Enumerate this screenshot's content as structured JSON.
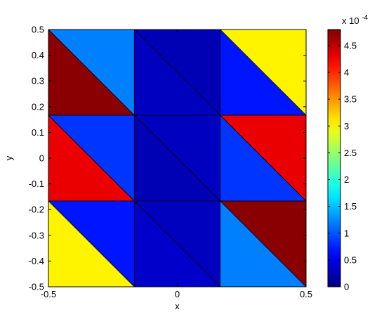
{
  "chart_data": {
    "type": "heatmap",
    "subtype": "triangular-mesh",
    "colormap": "jet",
    "xlabel": "x",
    "ylabel": "y",
    "xlim": [
      -0.5,
      0.5
    ],
    "ylim": [
      -0.5,
      0.5
    ],
    "xticks": [
      -0.5,
      0,
      0.5
    ],
    "xtick_labels": [
      "-0.5",
      "0",
      "0.5"
    ],
    "yticks": [
      -0.5,
      -0.4,
      -0.3,
      -0.2,
      -0.1,
      0,
      0.1,
      0.2,
      0.3,
      0.4,
      0.5
    ],
    "ytick_labels": [
      "-0.5",
      "-0.4",
      "-0.3",
      "-0.2",
      "-0.1",
      "0",
      "0.1",
      "0.2",
      "0.3",
      "0.4",
      "0.5"
    ],
    "grid": false,
    "colorbar": {
      "clim": [
        0,
        4.8
      ],
      "exponent_label": "x 10",
      "exponent_power": "-4",
      "ticks": [
        0,
        0.5,
        1,
        1.5,
        2,
        2.5,
        3,
        3.5,
        4,
        4.5
      ],
      "tick_labels": [
        "0",
        "0.5",
        "1",
        "1.5",
        "2",
        "2.5",
        "3",
        "3.5",
        "4",
        "4.5"
      ]
    },
    "mesh": {
      "nodes_x": [
        -0.5,
        -0.1667,
        0.1667,
        0.5
      ],
      "nodes_y": [
        -0.5,
        -0.1667,
        0.1667,
        0.5
      ],
      "triangles": [
        {
          "vertices": [
            [
              -0.5,
              0.5
            ],
            [
              -0.1667,
              0.5
            ],
            [
              -0.1667,
              0.1667
            ]
          ],
          "value": 1.2
        },
        {
          "vertices": [
            [
              -0.5,
              0.5
            ],
            [
              -0.5,
              0.1667
            ],
            [
              -0.1667,
              0.1667
            ]
          ],
          "value": 4.75
        },
        {
          "vertices": [
            [
              -0.1667,
              0.5
            ],
            [
              0.1667,
              0.5
            ],
            [
              0.1667,
              0.1667
            ]
          ],
          "value": 0.25
        },
        {
          "vertices": [
            [
              -0.1667,
              0.5
            ],
            [
              -0.1667,
              0.1667
            ],
            [
              0.1667,
              0.1667
            ]
          ],
          "value": 0.3
        },
        {
          "vertices": [
            [
              0.1667,
              0.5
            ],
            [
              0.5,
              0.5
            ],
            [
              0.5,
              0.1667
            ]
          ],
          "value": 3.05
        },
        {
          "vertices": [
            [
              0.1667,
              0.5
            ],
            [
              0.1667,
              0.1667
            ],
            [
              0.5,
              0.1667
            ]
          ],
          "value": 0.7
        },
        {
          "vertices": [
            [
              -0.5,
              0.1667
            ],
            [
              -0.1667,
              0.1667
            ],
            [
              -0.1667,
              -0.1667
            ]
          ],
          "value": 0.85
        },
        {
          "vertices": [
            [
              -0.5,
              0.1667
            ],
            [
              -0.5,
              -0.1667
            ],
            [
              -0.1667,
              -0.1667
            ]
          ],
          "value": 4.3
        },
        {
          "vertices": [
            [
              -0.1667,
              0.1667
            ],
            [
              0.1667,
              0.1667
            ],
            [
              0.1667,
              -0.1667
            ]
          ],
          "value": 0.3
        },
        {
          "vertices": [
            [
              -0.1667,
              0.1667
            ],
            [
              -0.1667,
              -0.1667
            ],
            [
              0.1667,
              -0.1667
            ]
          ],
          "value": 0.25
        },
        {
          "vertices": [
            [
              0.1667,
              0.1667
            ],
            [
              0.5,
              0.1667
            ],
            [
              0.5,
              -0.1667
            ]
          ],
          "value": 4.3
        },
        {
          "vertices": [
            [
              0.1667,
              0.1667
            ],
            [
              0.1667,
              -0.1667
            ],
            [
              0.5,
              -0.1667
            ]
          ],
          "value": 0.85
        },
        {
          "vertices": [
            [
              -0.5,
              -0.1667
            ],
            [
              -0.1667,
              -0.1667
            ],
            [
              -0.1667,
              -0.5
            ]
          ],
          "value": 0.7
        },
        {
          "vertices": [
            [
              -0.5,
              -0.1667
            ],
            [
              -0.5,
              -0.5
            ],
            [
              -0.1667,
              -0.5
            ]
          ],
          "value": 3.05
        },
        {
          "vertices": [
            [
              -0.1667,
              -0.1667
            ],
            [
              0.1667,
              -0.1667
            ],
            [
              0.1667,
              -0.5
            ]
          ],
          "value": 0.3
        },
        {
          "vertices": [
            [
              -0.1667,
              -0.1667
            ],
            [
              -0.1667,
              -0.5
            ],
            [
              0.1667,
              -0.5
            ]
          ],
          "value": 0.35
        },
        {
          "vertices": [
            [
              0.1667,
              -0.1667
            ],
            [
              0.5,
              -0.1667
            ],
            [
              0.5,
              -0.5
            ]
          ],
          "value": 4.75
        },
        {
          "vertices": [
            [
              0.1667,
              -0.1667
            ],
            [
              0.1667,
              -0.5
            ],
            [
              0.5,
              -0.5
            ]
          ],
          "value": 1.2
        }
      ]
    }
  }
}
